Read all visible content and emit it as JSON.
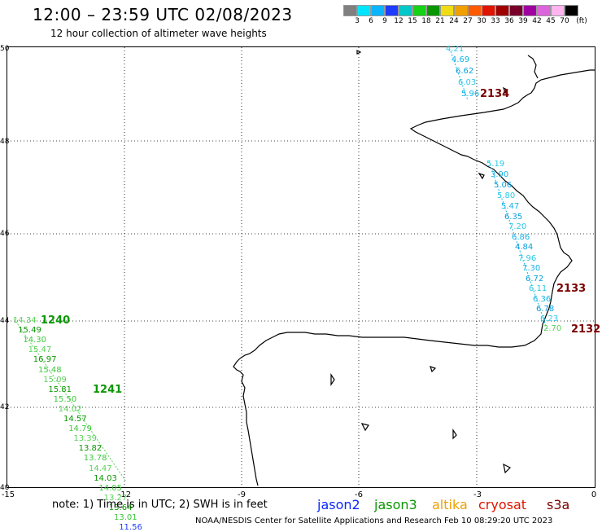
{
  "title": "12:00 – 23:59 UTC 02/08/2023",
  "subtitle": "12 hour collection of altimeter wave heights",
  "colorbar": {
    "unit": "(ft)",
    "colors": [
      "#808080",
      "#00e5ff",
      "#0ab4ff",
      "#1e3cff",
      "#00c8c8",
      "#14d214",
      "#0a9600",
      "#f0dc14",
      "#f0a000",
      "#ff5a00",
      "#e11400",
      "#a00000",
      "#780028",
      "#a000a0",
      "#dc64dc",
      "#ffb4f0",
      "#000000"
    ],
    "labels": [
      "3",
      "6",
      "9",
      "12",
      "15",
      "18",
      "21",
      "24",
      "27",
      "30",
      "33",
      "36",
      "39",
      "42",
      "45",
      "70"
    ]
  },
  "axes": {
    "lat_labels": [
      "50",
      "48",
      "46",
      "44",
      "42",
      "40"
    ],
    "lon_labels": [
      "-15",
      "-12",
      "-9",
      "-6",
      "-3",
      "0"
    ]
  },
  "passes": [
    {
      "id": "2134",
      "color": "#7a0000"
    },
    {
      "id": "2133",
      "color": "#7a0000"
    },
    {
      "id": "2132",
      "color": "#7a0000"
    },
    {
      "id": "1240",
      "color": "#0a9600"
    },
    {
      "id": "1241",
      "color": "#0a9600"
    }
  ],
  "wave_heights": {
    "cryosat_north": [
      "4.21",
      "4.69",
      "6.62",
      "6.03",
      "5.96"
    ],
    "cryosat_biscay": [
      "5.19",
      "3.90",
      "5.06",
      "5.80",
      "5.47",
      "6.35",
      "7.20",
      "6.86",
      "4.84",
      "7.96",
      "7.30",
      "6.72",
      "6.11",
      "6.36",
      "6.78",
      "6.23",
      "2.70"
    ],
    "jason3_west": [
      "14.34",
      "15.49",
      "14.30",
      "15.47",
      "16.97",
      "15.48",
      "15.09",
      "15.81",
      "15.50",
      "14.02",
      "14.57",
      "14.79",
      "13.39",
      "13.82",
      "13.78",
      "14.47",
      "14.03",
      "14.05",
      "13.27",
      "13.64",
      "13.01",
      "11.56"
    ]
  },
  "note": "note:  1) Time is in UTC; 2) SWH is in feet",
  "satellites": [
    {
      "name": "jason2",
      "color": "#0a28ff"
    },
    {
      "name": "jason3",
      "color": "#0a9600"
    },
    {
      "name": "altika",
      "color": "#f0a000"
    },
    {
      "name": "cryosat",
      "color": "#e11400"
    },
    {
      "name": "s3a",
      "color": "#7a0000"
    }
  ],
  "footer": "NOAA/NESDIS Center for Satellite Applications and Research     Feb 10 08:29:20 UTC 2023"
}
